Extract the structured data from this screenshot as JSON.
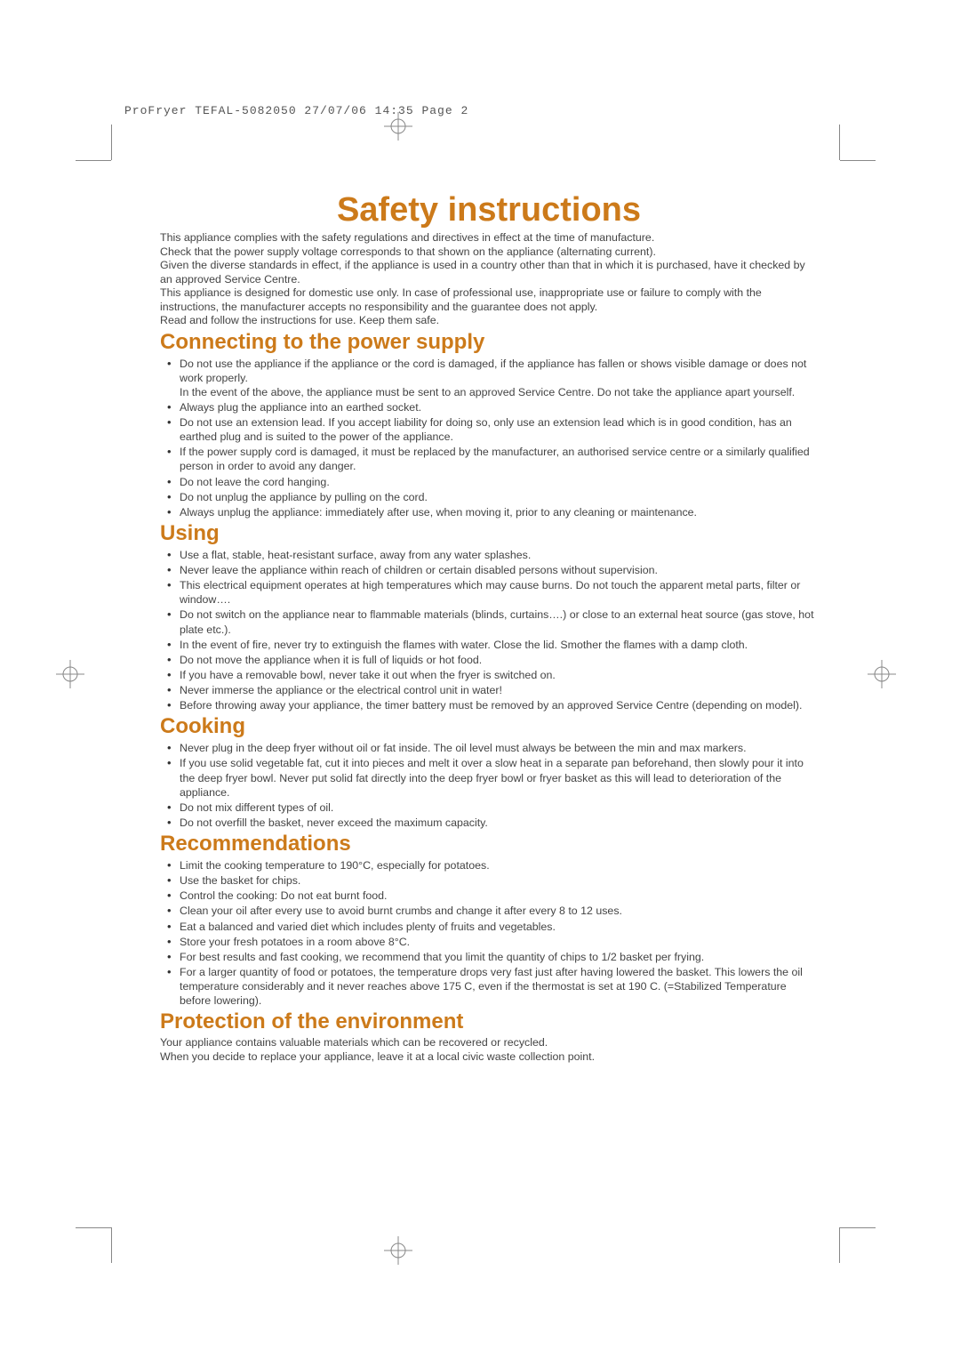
{
  "slug": "ProFryer TEFAL-5082050  27/07/06  14:35  Page 2",
  "title": "Safety instructions",
  "intro": [
    "This appliance complies with the safety regulations and directives in effect at the time of manufacture.",
    "Check that the power supply voltage corresponds to that shown on the appliance (alternating current).",
    "Given the diverse standards in effect, if the appliance is used in a country other than that in which it is purchased, have it checked by an approved Service Centre.",
    "This appliance is designed for domestic use only. In case of professional use, inappropriate use or failure to comply with the instructions, the manufacturer accepts no responsibility and the guarantee does not apply.",
    "Read and follow the instructions for use. Keep them safe."
  ],
  "sections": [
    {
      "heading": "Connecting to the power supply",
      "items": [
        "Do not use the appliance if the appliance or the cord is damaged, if the appliance has fallen or shows visible damage or does not work properly.\nIn the event of the above, the appliance must be sent to an approved Service Centre. Do not take the appliance apart yourself.",
        "Always plug the appliance into an earthed socket.",
        "Do not use an extension lead. If you accept liability for doing so, only use an extension lead which is in good condition, has an earthed plug and is suited to the power of the appliance.",
        "If the power supply cord is damaged, it must be replaced by the manufacturer, an authorised service centre or a similarly qualified person in order to avoid any danger.",
        "Do not leave the cord hanging.",
        "Do not unplug the appliance by pulling on the cord.",
        "Always unplug the appliance: immediately after use, when moving it, prior to any cleaning or maintenance."
      ]
    },
    {
      "heading": "Using",
      "items": [
        "Use a flat, stable, heat-resistant surface, away from any water splashes.",
        "Never leave the appliance within reach of children or certain disabled persons without supervision.",
        "This electrical equipment operates at high temperatures which may cause burns. Do not touch the apparent metal parts, filter or window….",
        "Do not switch on the appliance near to flammable materials (blinds, curtains….) or close to an external heat source (gas stove, hot plate etc.).",
        "In the event of fire, never try to extinguish the flames with water. Close the lid. Smother the flames with a damp cloth.",
        "Do not move the appliance when it is full of liquids or hot food.",
        "If you have a removable bowl, never take it out when the fryer is switched on.",
        "Never immerse the appliance or the electrical control unit in water!",
        "Before throwing away your appliance, the timer battery must be removed by an approved Service Centre (depending on model)."
      ]
    },
    {
      "heading": "Cooking",
      "items": [
        "Never plug in the deep fryer without oil or fat inside. The oil level must always be between the min and max markers.",
        "If you use solid vegetable fat, cut it into pieces and melt it over a slow heat in a separate pan beforehand, then slowly pour it into the deep fryer bowl. Never put solid fat directly into the deep fryer bowl or fryer basket as this will lead to deterioration of the appliance.",
        "Do not mix different types of oil.",
        "Do not overfill the basket, never exceed the maximum capacity."
      ]
    },
    {
      "heading": "Recommendations",
      "items": [
        "Limit the cooking temperature to 190°C, especially for potatoes.",
        "Use the basket for chips.",
        "Control the cooking: Do not eat burnt food.",
        "Clean your oil after every use to avoid burnt crumbs and change it after every 8 to 12 uses.",
        "Eat a balanced and varied diet which includes plenty of fruits and vegetables.",
        "Store your fresh potatoes in a room above 8°C.",
        "For best results and fast cooking, we recommend that you limit the quantity of chips to 1/2 basket per frying.",
        "For a larger quantity of food or potatoes, the temperature drops very fast just after having lowered the basket. This lowers the oil temperature considerably and it never reaches above 175 C, even if the thermostat is set at 190 C. (=Stabilized Temperature before lowering)."
      ]
    },
    {
      "heading": "Protection of the environment",
      "outro": [
        "Your appliance contains valuable materials which can be recovered or recycled.",
        "When you decide to replace your appliance, leave it at a local civic waste collection point."
      ]
    }
  ],
  "colors": {
    "heading": "#cc7a1a",
    "body": "#444444",
    "crop": "#888888",
    "background": "#ffffff"
  }
}
